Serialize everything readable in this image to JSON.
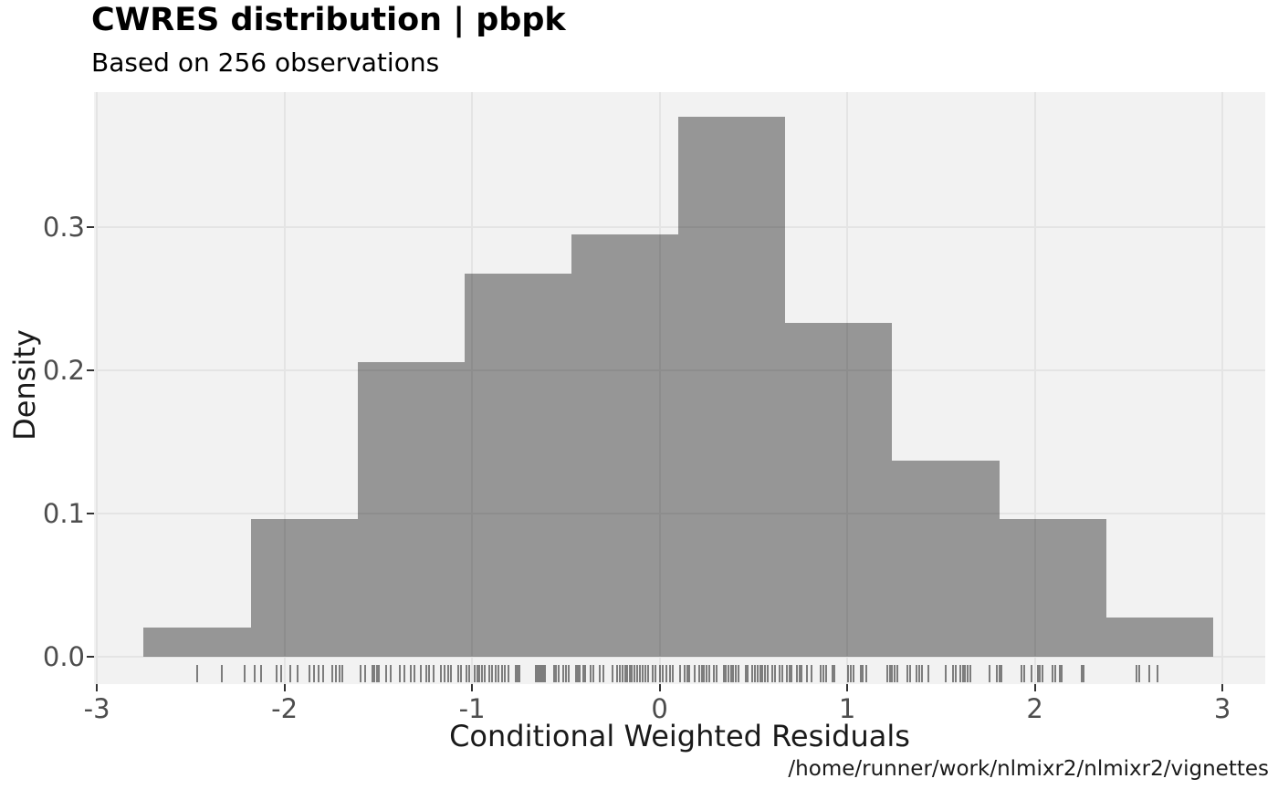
{
  "page": {
    "background": "#ffffff"
  },
  "header": {
    "title": "CWRES distribution | pbpk",
    "subtitle": "Based on 256 observations"
  },
  "footer": {
    "path_text": "/home/runner/work/nlmixr2/nlmixr2/vignettes"
  },
  "chart_data": {
    "type": "bar",
    "subtype": "density-histogram-with-rug",
    "title": "CWRES distribution | pbpk",
    "subtitle": "Based on 256 observations",
    "xlabel": "Conditional Weighted Residuals",
    "ylabel": "Density",
    "n_observations": 256,
    "legend_position": "none",
    "grid": {
      "show_major": true,
      "show_minor": false
    },
    "bins": {
      "binwidth": 0.57,
      "edges": [
        -2.75,
        -2.18,
        -1.61,
        -1.04,
        -0.47,
        0.1,
        0.67,
        1.24,
        1.81,
        2.38,
        2.95
      ],
      "counts": [
        3,
        14,
        30,
        39,
        43,
        55,
        34,
        20,
        14,
        4
      ],
      "densities": [
        0.0206,
        0.0959,
        0.2056,
        0.2673,
        0.2947,
        0.3769,
        0.233,
        0.1371,
        0.0959,
        0.0274
      ]
    },
    "x_axis": {
      "tick_labels": [
        "-3",
        "-2",
        "-1",
        "0",
        "1",
        "2",
        "3"
      ],
      "tick_values": [
        -3,
        -2,
        -1,
        0,
        1,
        2,
        3
      ],
      "range": [
        -3.015,
        3.228
      ]
    },
    "y_axis": {
      "tick_labels": [
        "0.0",
        "0.1",
        "0.2",
        "0.3"
      ],
      "tick_values": [
        0,
        0.1,
        0.2,
        0.3
      ],
      "range": [
        -0.0191,
        0.3943
      ]
    },
    "rug_values": [
      -2.465,
      -2.332,
      -2.213,
      -2.161,
      -2.124,
      -2.04,
      -2.016,
      -1.967,
      -1.93,
      -1.866,
      -1.842,
      -1.816,
      -1.795,
      -1.745,
      -1.727,
      -1.706,
      -1.69,
      -1.594,
      -1.571,
      -1.532,
      -1.521,
      -1.508,
      -1.497,
      -1.459,
      -1.433,
      -1.386,
      -1.362,
      -1.326,
      -1.307,
      -1.274,
      -1.242,
      -1.229,
      -1.206,
      -1.164,
      -1.145,
      -1.128,
      -1.11,
      -1.075,
      -1.057,
      -1.028,
      -1.015,
      -0.985,
      -0.972,
      -0.96,
      -0.946,
      -0.933,
      -0.908,
      -0.894,
      -0.872,
      -0.859,
      -0.839,
      -0.823,
      -0.804,
      -0.765,
      -0.755,
      -0.748,
      -0.661,
      -0.651,
      -0.641,
      -0.631,
      -0.622,
      -0.612,
      -0.564,
      -0.551,
      -0.538,
      -0.515,
      -0.499,
      -0.486,
      -0.447,
      -0.437,
      -0.424,
      -0.408,
      -0.395,
      -0.366,
      -0.353,
      -0.32,
      -0.301,
      -0.252,
      -0.226,
      -0.213,
      -0.2,
      -0.184,
      -0.171,
      -0.158,
      -0.148,
      -0.135,
      -0.119,
      -0.106,
      -0.093,
      -0.074,
      -0.061,
      -0.035,
      -0.022,
      0.004,
      0.017,
      0.036,
      0.053,
      0.069,
      0.108,
      0.134,
      0.147,
      0.16,
      0.186,
      0.212,
      0.225,
      0.237,
      0.251,
      0.264,
      0.29,
      0.303,
      0.342,
      0.354,
      0.367,
      0.38,
      0.393,
      0.406,
      0.419,
      0.458,
      0.471,
      0.491,
      0.51,
      0.523,
      0.536,
      0.549,
      0.562,
      0.575,
      0.601,
      0.614,
      0.64,
      0.653,
      0.679,
      0.692,
      0.705,
      0.731,
      0.744,
      0.757,
      0.783,
      0.809,
      0.86,
      0.873,
      0.887,
      0.922,
      0.932,
      1.006,
      1.019,
      1.033,
      1.071,
      1.084,
      1.101,
      1.214,
      1.227,
      1.24,
      1.253,
      1.266,
      1.321,
      1.334,
      1.37,
      1.383,
      1.399,
      1.434,
      1.525,
      1.564,
      1.577,
      1.603,
      1.616,
      1.629,
      1.642,
      1.655,
      1.759,
      1.798,
      1.811,
      1.824,
      1.928,
      1.941,
      1.98,
      2.016,
      2.028,
      2.041,
      2.096,
      2.11,
      2.132,
      2.145,
      2.252,
      2.262,
      2.544,
      2.557,
      2.612,
      2.655
    ],
    "colors": {
      "bar_fill": "rgba(0,0,0,0.38)",
      "panel_bg": "#f2f2f2",
      "grid": "#e4e4e4",
      "rug": "rgba(30,30,30,0.55)",
      "tick_mark": "#333333",
      "tick_label": "#4d4d4d",
      "axis_title": "#1a1a1a",
      "title_text": "#000000",
      "footer_text": "#1a1a1a"
    }
  }
}
